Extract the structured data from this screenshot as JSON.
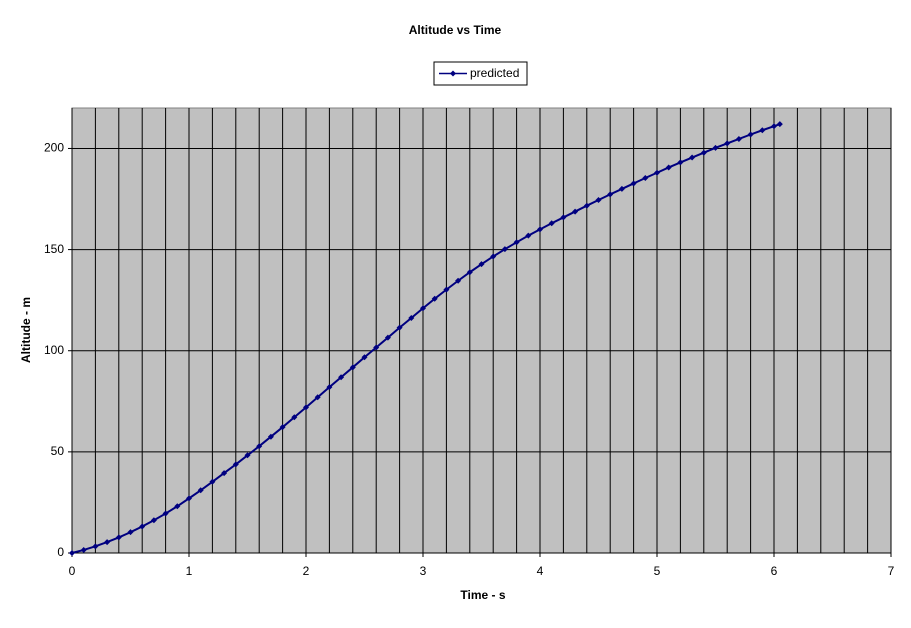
{
  "chart_data": {
    "type": "line",
    "title": "Altitude vs Time",
    "x_label": "Time - s",
    "y_label": "Altitude - m",
    "x": [
      0,
      0.1,
      0.2,
      0.3,
      0.4,
      0.5,
      0.6,
      0.7,
      0.8,
      0.9,
      1.0,
      1.1,
      1.2,
      1.3,
      1.4,
      1.5,
      1.6,
      1.7,
      1.8,
      1.9,
      2.0,
      2.1,
      2.2,
      2.3,
      2.4,
      2.5,
      2.6,
      2.7,
      2.8,
      2.9,
      3.0,
      3.1,
      3.2,
      3.3,
      3.4,
      3.5,
      3.6,
      3.7,
      3.8,
      3.9,
      4.0,
      4.1,
      4.2,
      4.3,
      4.4,
      4.5,
      4.6,
      4.7,
      4.8,
      4.9,
      5.0,
      5.1,
      5.2,
      5.3,
      5.4,
      5.5,
      5.6,
      5.7,
      5.8,
      5.9,
      6.0,
      6.05
    ],
    "series": [
      {
        "name": "predicted",
        "color": "#000080",
        "values": [
          0,
          1.5,
          3.3,
          5.4,
          7.7,
          10.3,
          13.1,
          16.2,
          19.5,
          23.1,
          27.0,
          31.0,
          35.2,
          39.5,
          43.8,
          48.3,
          52.8,
          57.5,
          62.2,
          67.1,
          72.0,
          77.0,
          82.0,
          86.9,
          91.8,
          96.8,
          101.6,
          106.5,
          111.4,
          116.2,
          121.0,
          125.7,
          130.2,
          134.6,
          138.8,
          142.8,
          146.6,
          150.2,
          153.6,
          156.9,
          160.0,
          163.0,
          165.9,
          168.8,
          171.7,
          174.5,
          177.3,
          180.0,
          182.7,
          185.4,
          188.0,
          190.6,
          193.1,
          195.5,
          197.9,
          200.3,
          202.5,
          204.7,
          206.9,
          209.0,
          211.0,
          212.0
        ]
      }
    ],
    "xlim": [
      0,
      7
    ],
    "xticks": [
      0,
      1,
      2,
      3,
      4,
      5,
      6,
      7
    ],
    "x_grid_ticks": [
      0,
      0.2,
      0.4,
      0.6,
      0.8,
      1,
      1.2,
      1.4,
      1.6,
      1.8,
      2,
      2.2,
      2.4,
      2.6,
      2.8,
      3,
      3.2,
      3.4,
      3.6,
      3.8,
      4,
      4.2,
      4.4,
      4.6,
      4.8,
      5,
      5.2,
      5.4,
      5.6,
      5.8,
      6,
      6.2,
      6.4,
      6.6,
      6.8,
      7
    ],
    "ylim": [
      0,
      220
    ],
    "yticks": [
      0,
      50,
      100,
      150,
      200
    ],
    "grid": true,
    "plot_background": "#c0c0c0",
    "legend": "top"
  }
}
